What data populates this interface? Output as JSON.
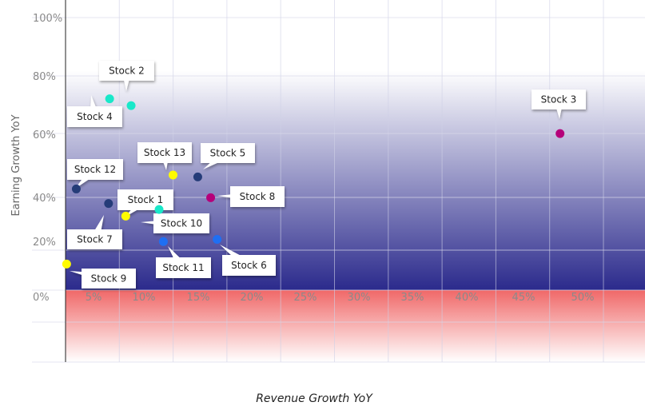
{
  "chart_data": {
    "type": "scatter",
    "xlabel": "Revenue Growth YoY",
    "ylabel": "Earning Growth YoY",
    "x_ticks": [
      "5%",
      "10%",
      "15%",
      "20%",
      "25%",
      "30%",
      "35%",
      "40%",
      "45%",
      "50%"
    ],
    "y_ticks": [
      "0%",
      "20%",
      "40%",
      "60%",
      "80%",
      "100%"
    ],
    "xlim": [
      0,
      53.5
    ],
    "ylim": [
      -28,
      100
    ],
    "grid": true,
    "background_bands": {
      "positive_color_top": "#ffffff",
      "positive_color_bottom": "#2b2a8c",
      "negative_color_top": "#f06868",
      "negative_color_bottom": "#ffffff"
    },
    "series_colors": {
      "teal": "#19e8c9",
      "navy": "#253c78",
      "magenta": "#b5007a",
      "yellow": "#fffb00",
      "blue": "#1f6ff2"
    },
    "points": [
      {
        "label": "Stock 1",
        "x": 8.7,
        "y": 29.4,
        "color": "#19e8c9"
      },
      {
        "label": "Stock 2",
        "x": 6.1,
        "y": 67.3,
        "color": "#19e8c9"
      },
      {
        "label": "Stock 3",
        "x": 46.0,
        "y": 57.1,
        "color": "#b5007a"
      },
      {
        "label": "Stock 4",
        "x": 4.1,
        "y": 69.8,
        "color": "#19e8c9"
      },
      {
        "label": "Stock 5",
        "x": 12.3,
        "y": 41.3,
        "color": "#253c78"
      },
      {
        "label": "Stock 6",
        "x": 14.1,
        "y": 18.5,
        "color": "#1f6ff2"
      },
      {
        "label": "Stock 7",
        "x": 4.0,
        "y": 31.6,
        "color": "#253c78"
      },
      {
        "label": "Stock 8",
        "x": 13.5,
        "y": 33.7,
        "color": "#b5007a"
      },
      {
        "label": "Stock 9",
        "x": 0.1,
        "y": 9.5,
        "color": "#fffb00"
      },
      {
        "label": "Stock 10",
        "x": 5.6,
        "y": 27.0,
        "color": "#fffb00"
      },
      {
        "label": "Stock 11",
        "x": 9.1,
        "y": 17.7,
        "color": "#1f6ff2"
      },
      {
        "label": "Stock 12",
        "x": 1.0,
        "y": 36.9,
        "color": "#253c78"
      },
      {
        "label": "Stock 13",
        "x": 10.0,
        "y": 42.0,
        "color": "#fffb00"
      }
    ]
  }
}
